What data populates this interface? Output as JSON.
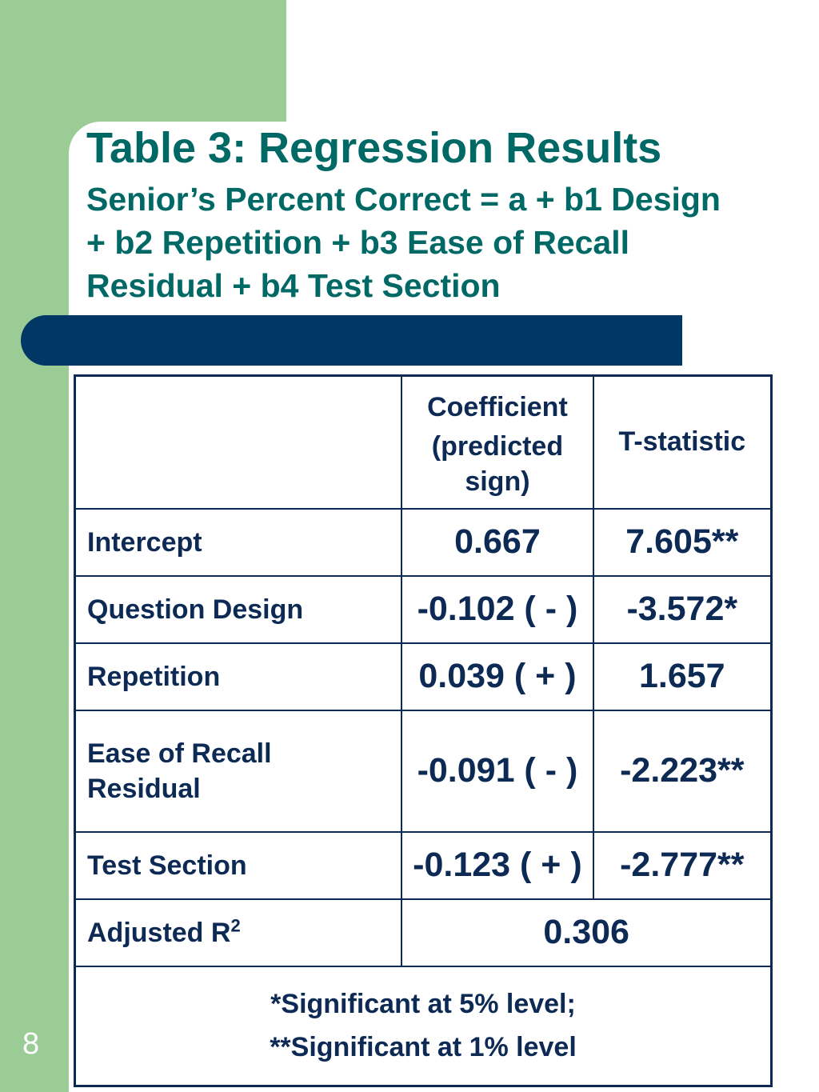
{
  "slide": {
    "title": "Table 3: Regression Results",
    "subtitle": "Senior’s Percent Correct = a + b1 Design + b2 Repetition + b3 Ease of Recall Residual + b4 Test Section",
    "page_number": "8",
    "colors": {
      "green_band": "#9ccc96",
      "teal_text": "#006966",
      "navy_bar": "#003764",
      "table_text": "#0d2a55"
    }
  },
  "table": {
    "header": {
      "empty": "",
      "coefficient_line1": "Coefficient",
      "coefficient_line2": "(predicted sign)",
      "tstat": "T-statistic"
    },
    "rows": [
      {
        "label": "Intercept",
        "coef": "0.667",
        "tstat": "7.605**"
      },
      {
        "label": "Question Design",
        "coef": "-0.102 ( - )",
        "tstat": "-3.572*"
      },
      {
        "label": "Repetition",
        "coef": "0.039 ( + )",
        "tstat": "1.657"
      },
      {
        "label": "Ease of Recall Residual",
        "coef": "-0.091 ( - )",
        "tstat": "-2.223**"
      },
      {
        "label": "Test Section",
        "coef": "-0.123 ( + )",
        "tstat": "-2.777**"
      }
    ],
    "adjusted": {
      "label": "Adjusted R",
      "superscript": "2",
      "value": "0.306"
    },
    "footnotes": [
      "*Significant at 5% level;",
      "**Significant at 1% level"
    ]
  }
}
